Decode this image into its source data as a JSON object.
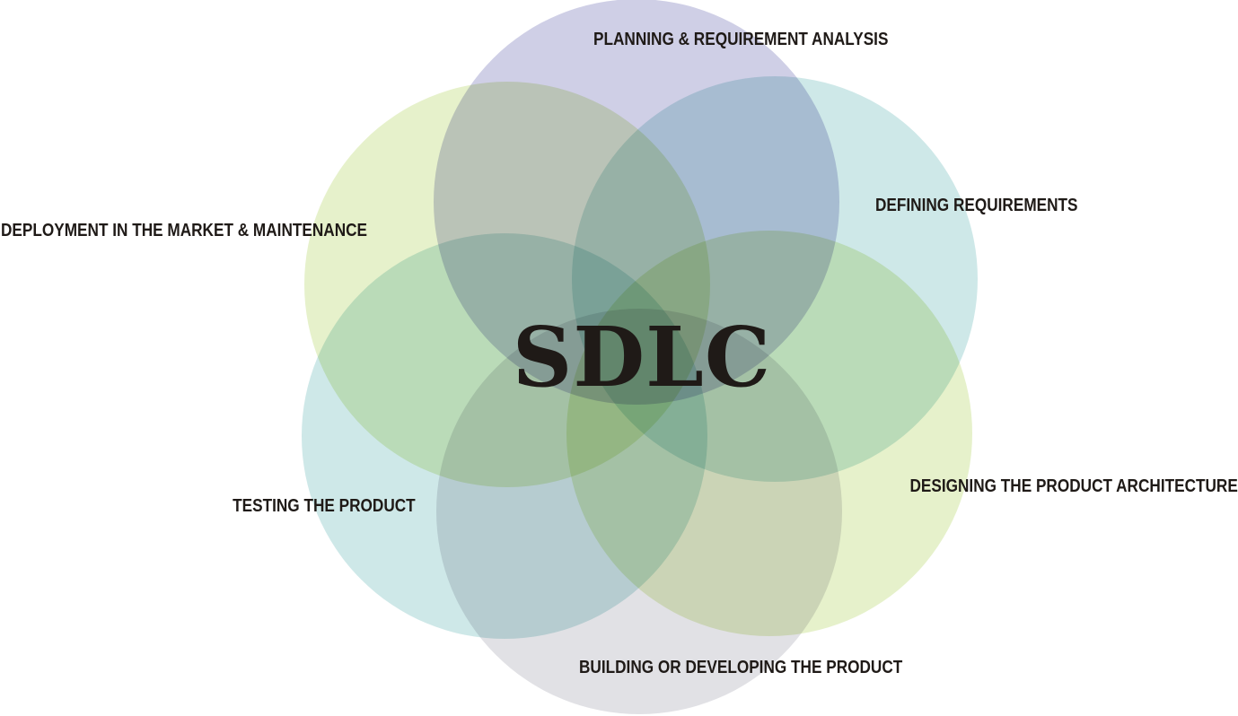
{
  "diagram": {
    "center_title": "SDLC",
    "stages": [
      {
        "label": "PLANNING & REQUIREMENT ANALYSIS",
        "color": "#c7c7e2"
      },
      {
        "label": "DEFINING REQUIREMENTS",
        "color": "#c6e4e4"
      },
      {
        "label": "DESIGNING THE PRODUCT ARCHITECTURE",
        "color": "#e2efc2"
      },
      {
        "label": "BUILDING OR DEVELOPING THE PRODUCT",
        "color": "#dcdce0"
      },
      {
        "label": "TESTING THE PRODUCT",
        "color": "#c6e4e4"
      },
      {
        "label": "DEPLOYMENT IN THE MARKET & MAINTENANCE",
        "color": "#e2efc2"
      }
    ]
  }
}
